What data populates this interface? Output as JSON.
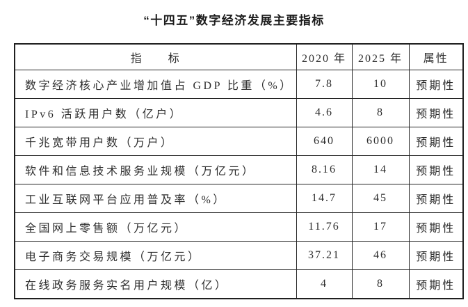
{
  "title": "“十四五”数字经济发展主要指标",
  "colors": {
    "background": "#ffffff",
    "text": "#2d2d2d",
    "border": "#262626"
  },
  "table": {
    "headers": {
      "indicator": "指　　标",
      "y2020": "2020 年",
      "y2025": "2025 年",
      "attribute": "属性"
    },
    "rows": [
      {
        "indicator": "数字经济核心产业增加值占 GDP 比重（%）",
        "y2020": "7.8",
        "y2025": "10",
        "attribute": "预期性"
      },
      {
        "indicator": "IPv6 活跃用户数（亿户）",
        "y2020": "4.6",
        "y2025": "8",
        "attribute": "预期性"
      },
      {
        "indicator": "千兆宽带用户数（万户）",
        "y2020": "640",
        "y2025": "6000",
        "attribute": "预期性"
      },
      {
        "indicator": "软件和信息技术服务业规模（万亿元）",
        "y2020": "8.16",
        "y2025": "14",
        "attribute": "预期性"
      },
      {
        "indicator": "工业互联网平台应用普及率（%）",
        "y2020": "14.7",
        "y2025": "45",
        "attribute": "预期性"
      },
      {
        "indicator": "全国网上零售额（万亿元）",
        "y2020": "11.76",
        "y2025": "17",
        "attribute": "预期性"
      },
      {
        "indicator": "电子商务交易规模（万亿元）",
        "y2020": "37.21",
        "y2025": "46",
        "attribute": "预期性"
      },
      {
        "indicator": "在线政务服务实名用户规模（亿）",
        "y2020": "4",
        "y2025": "8",
        "attribute": "预期性"
      }
    ]
  }
}
